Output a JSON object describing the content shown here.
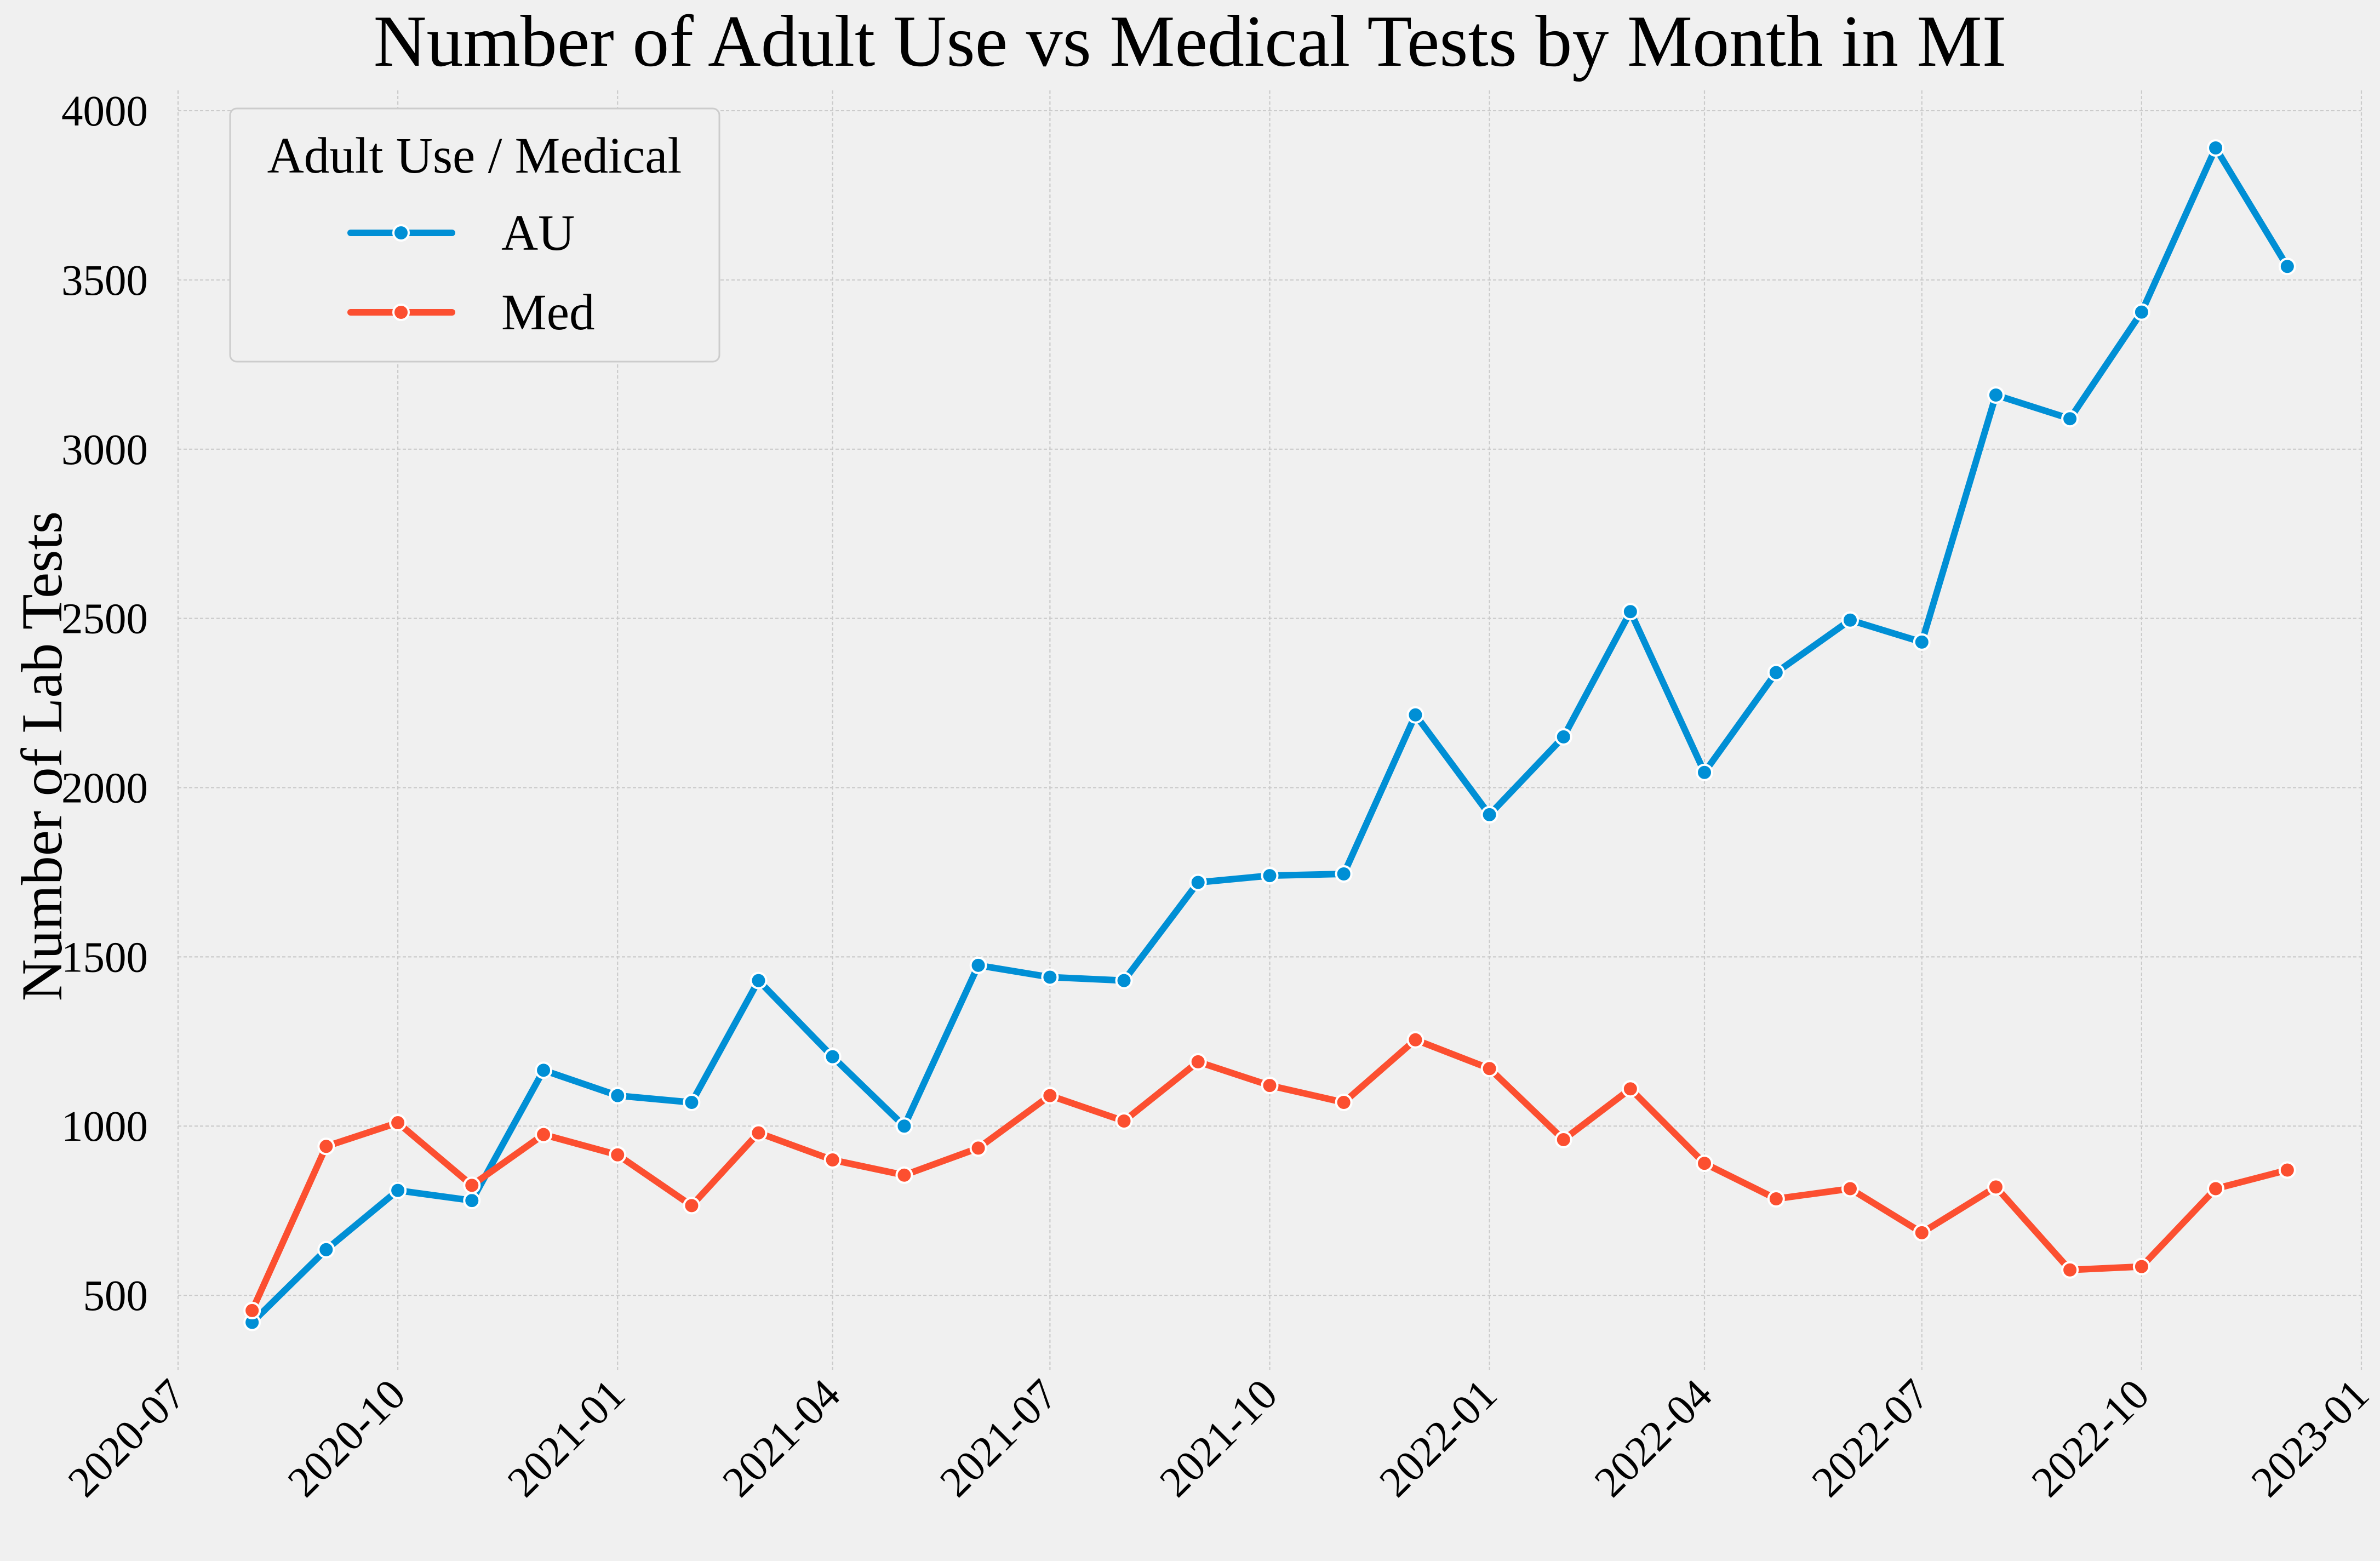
{
  "chart_data": {
    "type": "line",
    "title": "Number of Adult Use vs Medical Tests by Month in MI",
    "xlabel": "",
    "ylabel": "Number of Lab Tests",
    "x": [
      "2020-08",
      "2020-09",
      "2020-10",
      "2020-11",
      "2020-12",
      "2021-01",
      "2021-02",
      "2021-03",
      "2021-04",
      "2021-05",
      "2021-06",
      "2021-07",
      "2021-08",
      "2021-09",
      "2021-10",
      "2021-11",
      "2021-12",
      "2022-01",
      "2022-02",
      "2022-03",
      "2022-04",
      "2022-05",
      "2022-06",
      "2022-07",
      "2022-08",
      "2022-09",
      "2022-10",
      "2022-11",
      "2022-12"
    ],
    "series": [
      {
        "name": "AU",
        "color": "#008fd5",
        "values": [
          420,
          635,
          810,
          780,
          1165,
          1090,
          1070,
          1430,
          1205,
          1000,
          1475,
          1440,
          1430,
          1720,
          1740,
          1745,
          2215,
          1920,
          2150,
          2520,
          2045,
          2340,
          2495,
          2430,
          3160,
          3090,
          3405,
          3890,
          3540
        ]
      },
      {
        "name": "Med",
        "color": "#fc4f30",
        "values": [
          455,
          940,
          1010,
          825,
          975,
          915,
          765,
          980,
          900,
          855,
          935,
          1090,
          1015,
          1190,
          1120,
          1070,
          1255,
          1170,
          960,
          1110,
          890,
          785,
          815,
          685,
          820,
          575,
          585,
          815,
          870
        ]
      }
    ],
    "xticks": [
      "2020-07",
      "2020-10",
      "2021-01",
      "2021-04",
      "2021-07",
      "2021-10",
      "2022-01",
      "2022-04",
      "2022-07",
      "2022-10",
      "2023-01"
    ],
    "yticks": [
      500,
      1000,
      1500,
      2000,
      2500,
      3000,
      3500,
      4000
    ],
    "ylim": [
      280,
      4060
    ],
    "xlim": [
      "2020-07-01",
      "2023-01-01"
    ],
    "grid": true,
    "legend": {
      "title": "Adult Use / Medical",
      "placement": "top-left"
    }
  }
}
